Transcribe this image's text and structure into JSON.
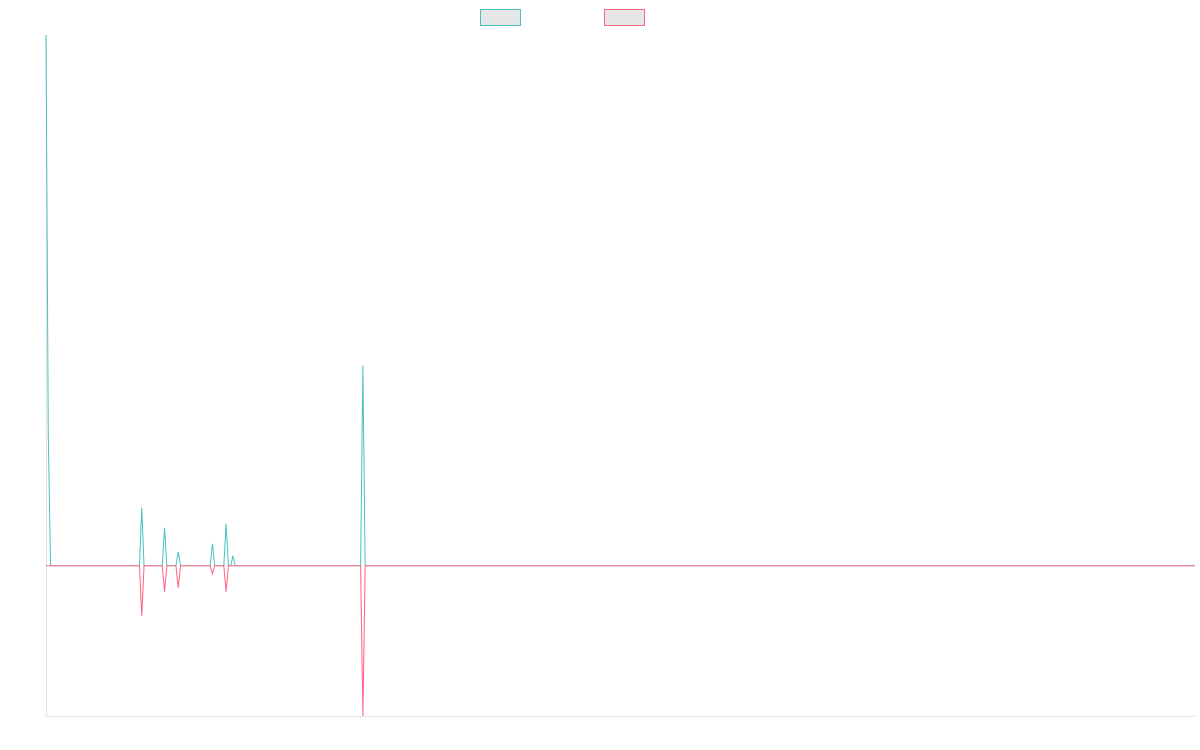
{
  "chart_data": {
    "type": "line",
    "title": "",
    "xlabel": "",
    "ylabel": "",
    "grid": false,
    "legend_position": "top-center",
    "x_count": 505,
    "ylim": [
      -1.5,
      5.3
    ],
    "series": [
      {
        "name": "",
        "color": "#4bc0c0",
        "points": [
          [
            0,
            5.3
          ],
          [
            1,
            1.3
          ],
          [
            2,
            0.0
          ],
          [
            41,
            0.0
          ],
          [
            42,
            0.58
          ],
          [
            43,
            0.0
          ],
          [
            51,
            0.0
          ],
          [
            52,
            0.38
          ],
          [
            53,
            0.0
          ],
          [
            57,
            0.0
          ],
          [
            58,
            0.14
          ],
          [
            59,
            0.0
          ],
          [
            72,
            0.0
          ],
          [
            73,
            0.22
          ],
          [
            74,
            0.0
          ],
          [
            78,
            0.0
          ],
          [
            79,
            0.42
          ],
          [
            80,
            0.0
          ],
          [
            81,
            0.0
          ],
          [
            82,
            0.1
          ],
          [
            83,
            0.0
          ],
          [
            138,
            0.0
          ],
          [
            139,
            2.0
          ],
          [
            140,
            0.0
          ],
          [
            504,
            0.0
          ]
        ]
      },
      {
        "name": "",
        "color": "#ff6384",
        "points": [
          [
            0,
            0.0
          ],
          [
            41,
            0.0
          ],
          [
            42,
            -0.5
          ],
          [
            43,
            0.0
          ],
          [
            51,
            0.0
          ],
          [
            52,
            -0.26
          ],
          [
            53,
            0.0
          ],
          [
            57,
            0.0
          ],
          [
            58,
            -0.22
          ],
          [
            59,
            0.0
          ],
          [
            72,
            0.0
          ],
          [
            73,
            -0.08
          ],
          [
            74,
            0.0
          ],
          [
            78,
            0.0
          ],
          [
            79,
            -0.26
          ],
          [
            80,
            0.0
          ],
          [
            138,
            0.0
          ],
          [
            139,
            -1.5
          ],
          [
            140,
            0.0
          ],
          [
            504,
            0.0
          ]
        ]
      }
    ]
  }
}
